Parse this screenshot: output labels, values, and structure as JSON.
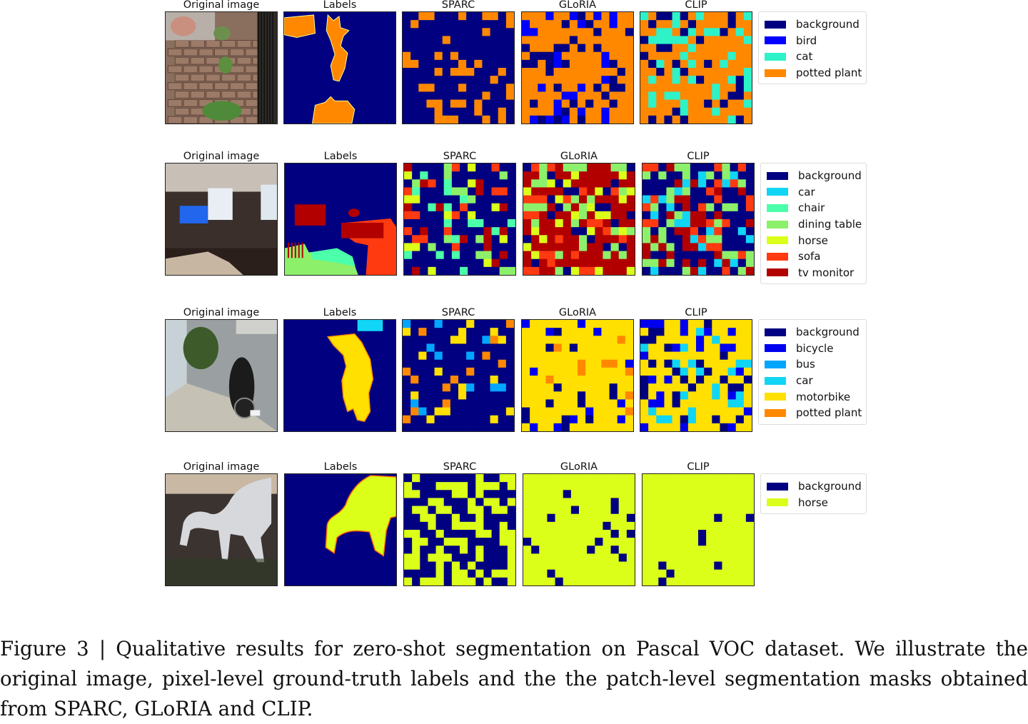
{
  "figure": {
    "rows": [
      {
        "panel_titles": [
          "Original image",
          "Labels",
          "SPARC",
          "GLoRIA",
          "CLIP"
        ],
        "image_alt": "stone steps with potted plants",
        "legend": [
          {
            "label": "background",
            "color": "#000080"
          },
          {
            "label": "bird",
            "color": "#0000ff"
          },
          {
            "label": "cat",
            "color": "#2ef2c8"
          },
          {
            "label": "potted plant",
            "color": "#ff8800"
          }
        ]
      },
      {
        "panel_titles": [
          "Original image",
          "Labels",
          "SPARC",
          "GLoRIA",
          "CLIP"
        ],
        "image_alt": "living room with tv",
        "legend": [
          {
            "label": "background",
            "color": "#000080"
          },
          {
            "label": "car",
            "color": "#11d5f5"
          },
          {
            "label": "chair",
            "color": "#4cffaa"
          },
          {
            "label": "dining table",
            "color": "#8df06a"
          },
          {
            "label": "horse",
            "color": "#dcff1a"
          },
          {
            "label": "sofa",
            "color": "#ff3a10"
          },
          {
            "label": "tv monitor",
            "color": "#b20000"
          }
        ]
      },
      {
        "panel_titles": [
          "Original image",
          "Labels",
          "SPARC",
          "GLoRIA",
          "CLIP"
        ],
        "image_alt": "motorbike parked on street",
        "legend": [
          {
            "label": "background",
            "color": "#000080"
          },
          {
            "label": "bicycle",
            "color": "#0000f0"
          },
          {
            "label": "bus",
            "color": "#00a6ff"
          },
          {
            "label": "car",
            "color": "#11d5f5"
          },
          {
            "label": "motorbike",
            "color": "#ffe000"
          },
          {
            "label": "potted plant",
            "color": "#ff8800"
          }
        ]
      },
      {
        "panel_titles": [
          "Original image",
          "Labels",
          "SPARC",
          "GLoRIA",
          "CLIP"
        ],
        "image_alt": "white horse grazing",
        "legend": [
          {
            "label": "background",
            "color": "#000080"
          },
          {
            "label": "horse",
            "color": "#dcff1a"
          }
        ]
      }
    ]
  },
  "caption": {
    "text": "Figure 3 | Qualitative results for zero-shot segmentation on Pascal VOC dataset. We illustrate the original image, pixel-level ground-truth labels and the the patch-level segmentation masks obtained from SPARC, GLoRIA and CLIP."
  }
}
